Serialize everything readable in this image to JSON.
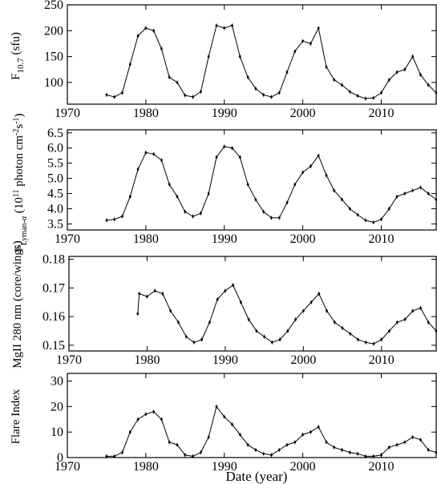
{
  "chart_data": [
    {
      "type": "line",
      "ylabel": "F10.7 (sfu)",
      "ylabel_main": "F",
      "ylabel_sub": "10.7",
      "ylabel_unit": " (sfu)",
      "xlim": [
        1970,
        2017
      ],
      "ylim": [
        58,
        250
      ],
      "xticks": [
        1970,
        1980,
        1990,
        2000,
        2010
      ],
      "xtick_labels": [
        "1970",
        "1980",
        "1990",
        "2000",
        "2010"
      ],
      "yticks": [
        100,
        150,
        200,
        250
      ],
      "ytick_labels": [
        "100",
        "150",
        "200",
        "250"
      ],
      "series": [
        {
          "x": [
            1975,
            1976,
            1977,
            1978,
            1979,
            1980,
            1981,
            1982,
            1983,
            1984,
            1985,
            1986,
            1987,
            1988,
            1989,
            1990,
            1991,
            1992,
            1993,
            1994,
            1995,
            1996,
            1997,
            1998,
            1999,
            2000,
            2001,
            2002,
            2003,
            2004,
            2005,
            2006,
            2007,
            2008,
            2009,
            2010,
            2011,
            2012,
            2013,
            2014,
            2015,
            2016,
            2017
          ],
          "y": [
            76,
            72,
            80,
            135,
            190,
            205,
            200,
            165,
            110,
            100,
            75,
            72,
            82,
            150,
            210,
            205,
            210,
            150,
            110,
            88,
            76,
            72,
            80,
            120,
            160,
            180,
            175,
            205,
            130,
            105,
            95,
            82,
            74,
            69,
            70,
            80,
            105,
            120,
            125,
            150,
            115,
            95,
            80
          ]
        }
      ]
    },
    {
      "type": "line",
      "ylabel": "F Lyman-α (10^11 photon cm^-2 s^-1)",
      "ylabel_main": "F",
      "ylabel_sub": "Lyman-α",
      "ylabel_unit": " (10",
      "ylabel_exp": "11",
      "ylabel_unit2": " photon cm",
      "ylabel_exp2": "-2",
      "ylabel_unit3": "s",
      "ylabel_exp3": "-1",
      "ylabel_end": ")",
      "xlim": [
        1970,
        2017
      ],
      "ylim": [
        3.3,
        6.6
      ],
      "xticks": [
        1970,
        1980,
        1990,
        2000,
        2010
      ],
      "xtick_labels": [
        "1970",
        "1980",
        "1990",
        "2000",
        "2010"
      ],
      "yticks": [
        3.5,
        4.0,
        4.5,
        5.0,
        5.5,
        6.0,
        6.5
      ],
      "ytick_labels": [
        "3.5",
        "4.0",
        "4.5",
        "5.0",
        "5.5",
        "6.0",
        "6.5"
      ],
      "series": [
        {
          "x": [
            1975,
            1976,
            1977,
            1978,
            1979,
            1980,
            1981,
            1982,
            1983,
            1984,
            1985,
            1986,
            1987,
            1988,
            1989,
            1990,
            1991,
            1992,
            1993,
            1994,
            1995,
            1996,
            1997,
            1998,
            1999,
            2000,
            2001,
            2002,
            2003,
            2004,
            2005,
            2006,
            2007,
            2008,
            2009,
            2010,
            2011,
            2012,
            2013,
            2014,
            2015,
            2016,
            2017
          ],
          "y": [
            3.62,
            3.65,
            3.75,
            4.4,
            5.3,
            5.85,
            5.8,
            5.6,
            4.8,
            4.4,
            3.9,
            3.75,
            3.85,
            4.5,
            5.7,
            6.05,
            6.0,
            5.7,
            4.8,
            4.3,
            3.9,
            3.7,
            3.7,
            4.2,
            4.8,
            5.2,
            5.4,
            5.75,
            5.1,
            4.6,
            4.3,
            4.0,
            3.8,
            3.62,
            3.55,
            3.65,
            4.0,
            4.4,
            4.5,
            4.6,
            4.7,
            4.5,
            4.3
          ]
        }
      ]
    },
    {
      "type": "line",
      "ylabel": "MgII 280 nm (core/wings)",
      "xlim": [
        1970,
        2017
      ],
      "ylim": [
        0.148,
        0.181
      ],
      "xticks": [
        1970,
        1980,
        1990,
        2000,
        2010
      ],
      "xtick_labels": [
        "1970",
        "1980",
        "1990",
        "2000",
        "2010"
      ],
      "yticks": [
        0.15,
        0.16,
        0.17,
        0.18
      ],
      "ytick_labels": [
        "0.15",
        "0.16",
        "0.17",
        "0.18"
      ],
      "series": [
        {
          "x": [
            1978.8,
            1979,
            1980,
            1981,
            1982,
            1983,
            1984,
            1985,
            1986,
            1987,
            1988,
            1989,
            1990,
            1991,
            1992,
            1993,
            1994,
            1995,
            1996,
            1997,
            1998,
            1999,
            2000,
            2001,
            2002,
            2003,
            2004,
            2005,
            2006,
            2007,
            2008,
            2009,
            2010,
            2011,
            2012,
            2013,
            2014,
            2015,
            2016,
            2017
          ],
          "y": [
            0.161,
            0.168,
            0.167,
            0.169,
            0.168,
            0.162,
            0.158,
            0.153,
            0.151,
            0.152,
            0.158,
            0.166,
            0.169,
            0.171,
            0.165,
            0.159,
            0.155,
            0.153,
            0.151,
            0.152,
            0.155,
            0.159,
            0.162,
            0.165,
            0.168,
            0.162,
            0.158,
            0.156,
            0.154,
            0.152,
            0.151,
            0.1505,
            0.152,
            0.155,
            0.158,
            0.159,
            0.162,
            0.163,
            0.158,
            0.155
          ]
        }
      ]
    },
    {
      "type": "line",
      "ylabel": "Flare Index",
      "xlabel": "Date (year)",
      "xlim": [
        1970,
        2017
      ],
      "ylim": [
        0,
        33
      ],
      "xticks": [
        1970,
        1980,
        1990,
        2000,
        2010
      ],
      "xtick_labels": [
        "1970",
        "1980",
        "1990",
        "2000",
        "2010"
      ],
      "yticks": [
        0,
        10,
        20,
        30
      ],
      "ytick_labels": [
        "0",
        "10",
        "20",
        "30"
      ],
      "series": [
        {
          "x": [
            1975,
            1976,
            1977,
            1978,
            1979,
            1980,
            1981,
            1982,
            1983,
            1984,
            1985,
            1986,
            1987,
            1988,
            1989,
            1990,
            1991,
            1992,
            1993,
            1994,
            1995,
            1996,
            1997,
            1998,
            1999,
            2000,
            2001,
            2002,
            2003,
            2004,
            2005,
            2006,
            2007,
            2008,
            2009,
            2010,
            2011,
            2012,
            2013,
            2014,
            2015,
            2016,
            2017
          ],
          "y": [
            0.5,
            0.5,
            2,
            10,
            15,
            17,
            18,
            15,
            6,
            5,
            1,
            0.5,
            2,
            8,
            20,
            16,
            13,
            9,
            5,
            3,
            1.5,
            1,
            3,
            5,
            6,
            9,
            10,
            12,
            6,
            4,
            3,
            2,
            1.5,
            0.5,
            0.5,
            1,
            4,
            5,
            6,
            8,
            7,
            3,
            2
          ]
        }
      ]
    }
  ]
}
